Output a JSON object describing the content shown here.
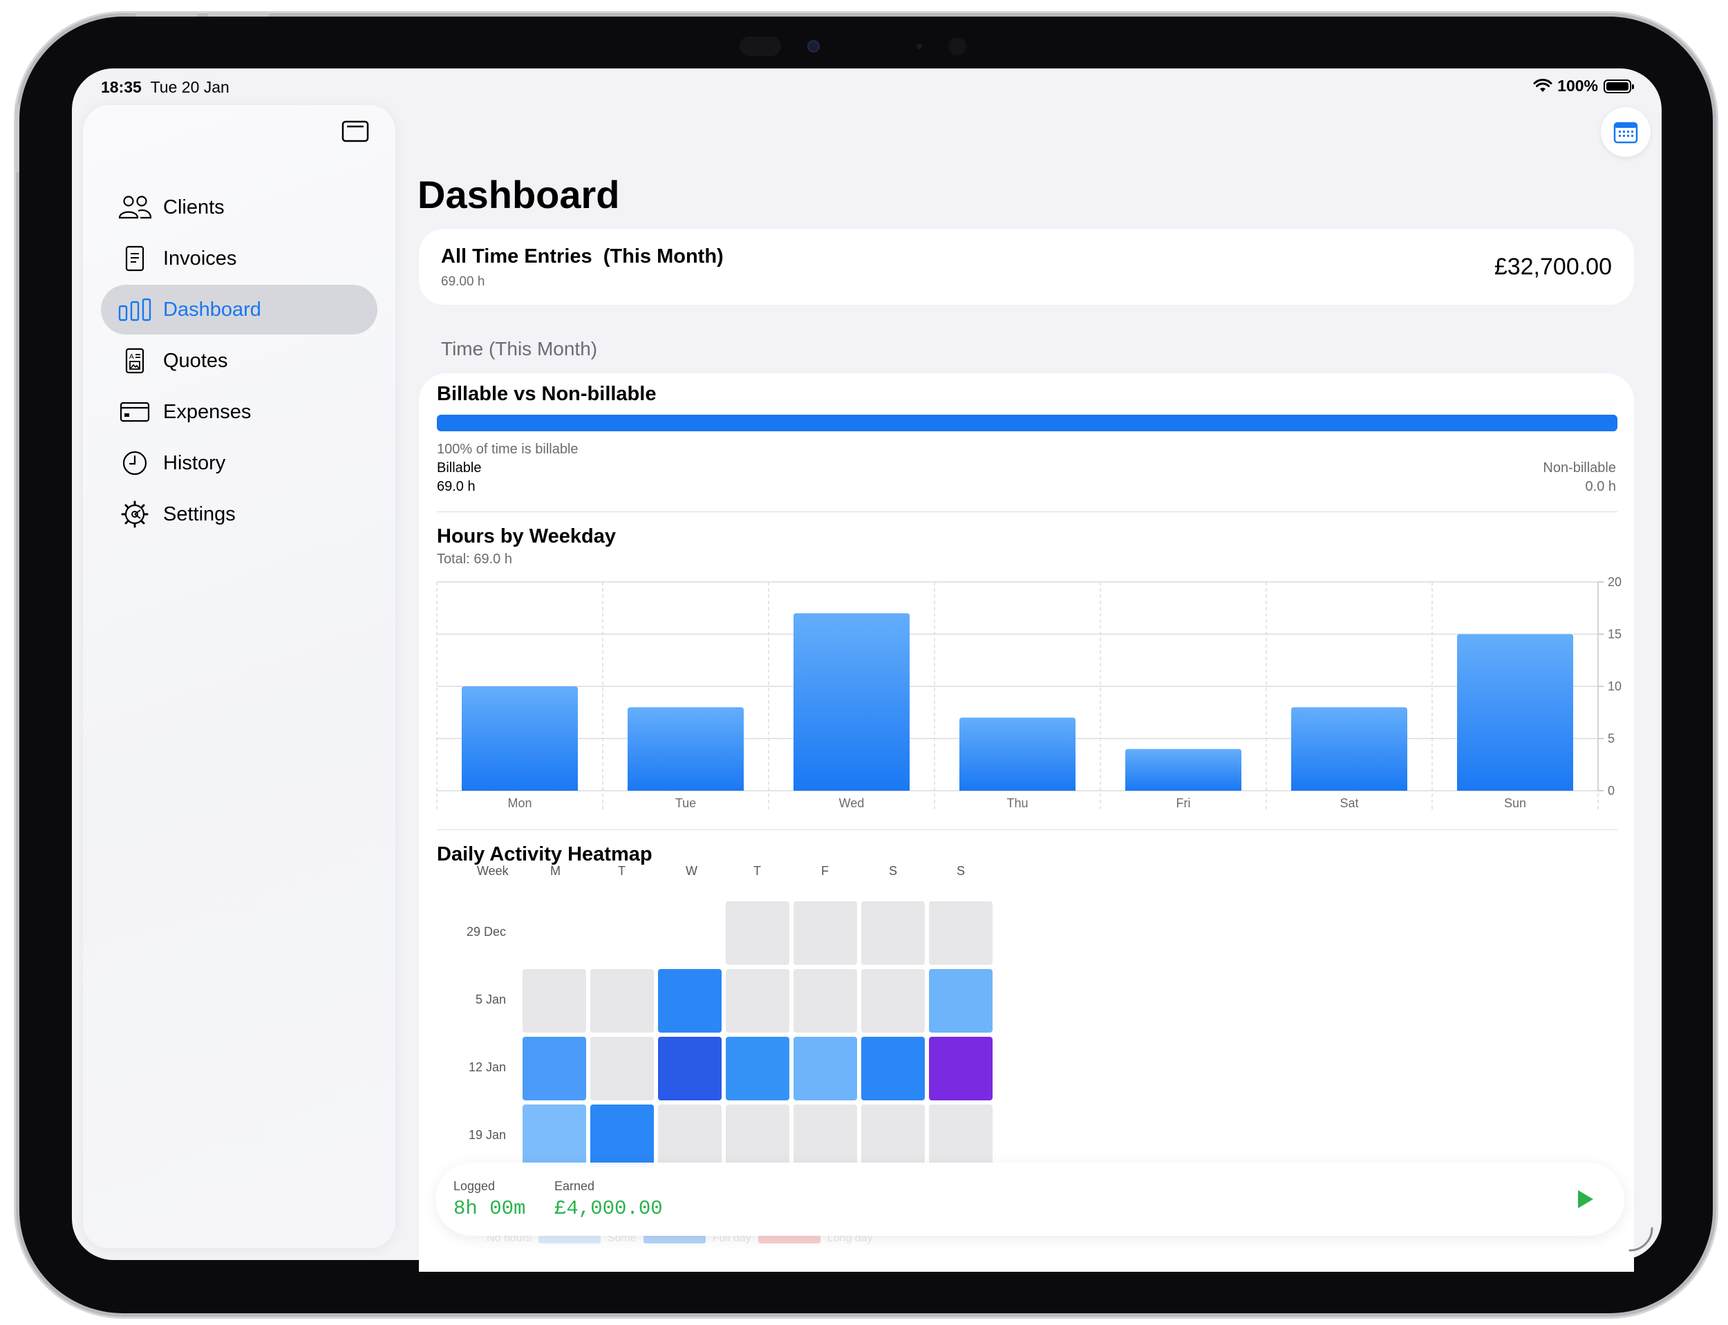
{
  "status_bar": {
    "time": "18:35",
    "date": "Tue 20 Jan",
    "battery": "100%"
  },
  "sidebar": {
    "items": [
      {
        "label": "Clients",
        "icon": "people-icon"
      },
      {
        "label": "Invoices",
        "icon": "document-icon"
      },
      {
        "label": "Dashboard",
        "icon": "chart-bar-icon",
        "active": true
      },
      {
        "label": "Quotes",
        "icon": "quote-doc-icon"
      },
      {
        "label": "Expenses",
        "icon": "credit-card-icon"
      },
      {
        "label": "History",
        "icon": "clock-icon"
      },
      {
        "label": "Settings",
        "icon": "gear-icon"
      }
    ]
  },
  "main": {
    "title": "Dashboard",
    "summary": {
      "title": "All Time Entries  (This Month)",
      "hours": "69.00 h",
      "amount": "£32,700.00"
    },
    "section_header": "Time (This Month)",
    "billable": {
      "heading": "Billable vs Non-billable",
      "fraction": 1.0,
      "percent_text": "100% of time is billable",
      "billable_label": "Billable",
      "billable_value": "69.0 h",
      "nonbillable_label": "Non-billable",
      "nonbillable_value": "0.0 h"
    },
    "weekday": {
      "heading": "Hours by Weekday",
      "total": "Total: 69.0 h"
    },
    "heatmap": {
      "heading": "Daily Activity Heatmap",
      "week_header": "Week",
      "day_headers": [
        "M",
        "T",
        "W",
        "T",
        "F",
        "S",
        "S"
      ],
      "weeks": [
        {
          "label": "29 Dec",
          "cells": [
            "none",
            "none",
            "none",
            "empty",
            "empty",
            "empty",
            "empty"
          ]
        },
        {
          "label": "5 Jan",
          "cells": [
            "empty",
            "empty",
            "#2b87f5",
            "empty",
            "empty",
            "empty",
            "#6eb4fb"
          ]
        },
        {
          "label": "12 Jan",
          "cells": [
            "#4a9cf8",
            "empty",
            "#2a5ae8",
            "#3593f7",
            "#6eb4fb",
            "#2b87f5",
            "#7a2ae0"
          ]
        },
        {
          "label": "19 Jan",
          "cells": [
            "#7cbcfb",
            "#2b87f5",
            "empty",
            "empty",
            "empty",
            "empty",
            "empty"
          ]
        }
      ],
      "legend": [
        "No hours",
        "Some",
        "Full day",
        "Long day"
      ]
    }
  },
  "timer": {
    "logged_label": "Logged",
    "logged_value": "8h 00m",
    "earned_label": "Earned",
    "earned_value": "£4,000.00"
  },
  "colors": {
    "accent": "#1877f2",
    "bar_top": "#64aefb",
    "bar_bottom": "#1a78f3",
    "heat_empty": "#e7e7ea",
    "timer_green": "#2bb24c"
  },
  "chart_data": {
    "type": "bar",
    "categories": [
      "Mon",
      "Tue",
      "Wed",
      "Thu",
      "Fri",
      "Sat",
      "Sun"
    ],
    "values": [
      10,
      8,
      17,
      7,
      4,
      8,
      15
    ],
    "title": "Hours by Weekday",
    "subtitle": "Total: 69.0 h",
    "xlabel": "",
    "ylabel": "",
    "ylim": [
      0,
      20
    ],
    "yticks": [
      0,
      5,
      10,
      15,
      20
    ],
    "grid": true,
    "y_axis_side": "right"
  }
}
